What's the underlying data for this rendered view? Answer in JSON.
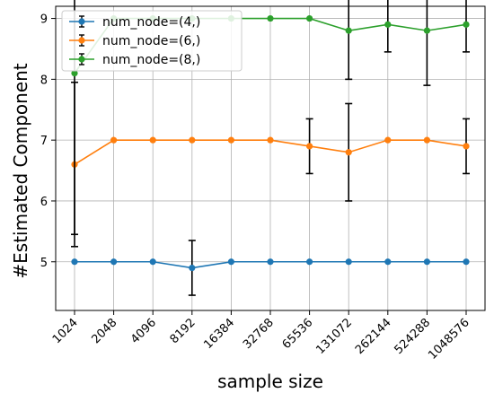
{
  "chart_data": {
    "type": "line",
    "xlabel": "sample size",
    "ylabel": "#Estimated Component",
    "categories": [
      "1024",
      "2048",
      "4096",
      "8192",
      "16384",
      "32768",
      "65536",
      "131072",
      "262144",
      "524288",
      "1048576"
    ],
    "ylim": [
      4.2,
      9.2
    ],
    "yticks": [
      5,
      6,
      7,
      8,
      9
    ],
    "grid": true,
    "legend_position": "top-left",
    "series": [
      {
        "name": "num_node=(4,)",
        "color": "#1f77b4",
        "values": [
          5.0,
          5.0,
          5.0,
          4.9,
          5.0,
          5.0,
          5.0,
          5.0,
          5.0,
          5.0,
          5.0
        ],
        "errors": [
          0,
          0,
          0,
          0.45,
          0,
          0,
          0,
          0,
          0,
          0,
          0
        ]
      },
      {
        "name": "num_node=(6,)",
        "color": "#ff7f0e",
        "values": [
          6.6,
          7.0,
          7.0,
          7.0,
          7.0,
          7.0,
          6.9,
          6.8,
          7.0,
          7.0,
          6.9
        ],
        "errors": [
          1.35,
          0,
          0,
          0,
          0,
          0,
          0.45,
          0.8,
          0,
          0,
          0.45
        ]
      },
      {
        "name": "num_node=(8,)",
        "color": "#2ca02c",
        "values": [
          8.1,
          9.0,
          9.0,
          9.0,
          9.0,
          9.0,
          9.0,
          8.8,
          8.9,
          8.8,
          8.9
        ],
        "errors": [
          2.65,
          0,
          0,
          0,
          0,
          0,
          0,
          0.8,
          0.45,
          0.9,
          0.45
        ]
      }
    ]
  }
}
